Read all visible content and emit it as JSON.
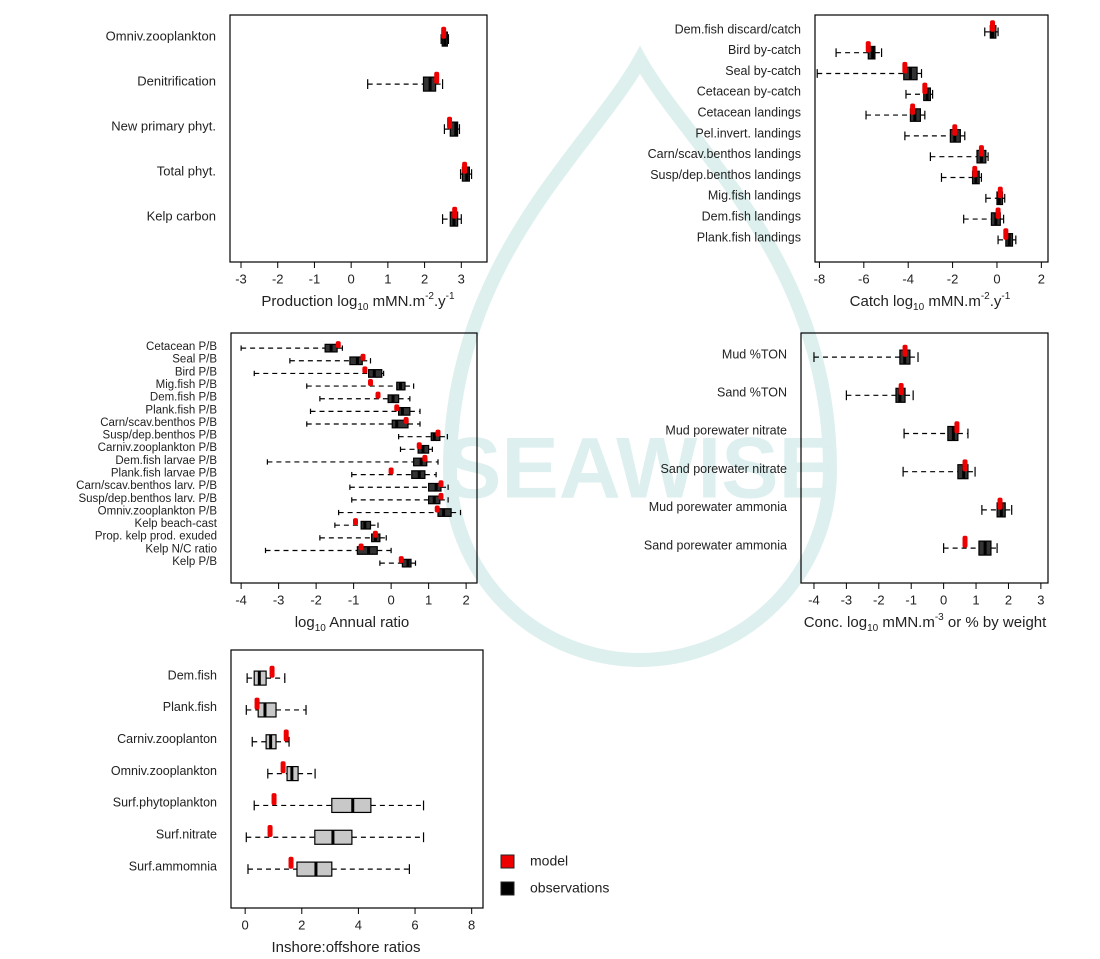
{
  "watermark": "SEAWISE",
  "legend": {
    "entries": [
      {
        "name": "model",
        "color": "#ee0000"
      },
      {
        "name": "observations",
        "color": "#000000"
      }
    ]
  },
  "chart_data": [
    {
      "type": "box",
      "orientation": "horizontal",
      "xlabel": [
        {
          "text": "Production log"
        },
        {
          "text": "10",
          "sub": true
        },
        {
          "text": " mMN.m"
        },
        {
          "text": "-2",
          "super": true
        },
        {
          "text": ".y"
        },
        {
          "text": "-1",
          "super": true
        }
      ],
      "categories": [
        "Omniv.zooplankton",
        "Denitrification",
        "New primary phyt.",
        "Total phyt.",
        "Kelp carbon"
      ],
      "xlim": [
        -3.3,
        3.7
      ],
      "xticks": [
        -3,
        -2,
        -1,
        0,
        1,
        2,
        3
      ],
      "box_fill": "#333333",
      "model": [
        2.52,
        2.33,
        2.68,
        3.09,
        2.82
      ],
      "whisker_low": [
        2.45,
        0.45,
        2.54,
        2.98,
        2.49
      ],
      "q1": [
        2.48,
        1.97,
        2.7,
        3.03,
        2.7
      ],
      "median": [
        2.55,
        2.15,
        2.85,
        3.15,
        2.8
      ],
      "q3": [
        2.62,
        2.3,
        2.9,
        3.22,
        2.9
      ],
      "whisker_high": [
        2.65,
        2.49,
        2.95,
        3.28,
        3.0
      ]
    },
    {
      "type": "box",
      "orientation": "horizontal",
      "xlabel": [
        {
          "text": "Catch log"
        },
        {
          "text": "10",
          "sub": true
        },
        {
          "text": " mMN.m"
        },
        {
          "text": "-2",
          "super": true
        },
        {
          "text": ".y"
        },
        {
          "text": "-1",
          "super": true
        }
      ],
      "categories": [
        "Dem.fish discard/catch",
        "Bird by-catch",
        "Seal by-catch",
        "Cetacean by-catch",
        "Cetacean landings",
        "Pel.invert. landings",
        "Carn/scav.benthos landings",
        "Susp/dep.benthos landings",
        "Mig.fish landings",
        "Dem.fish landings",
        "Plank.fish landings"
      ],
      "xlim": [
        -8.2,
        2.3
      ],
      "xticks": [
        -8,
        -6,
        -4,
        -2,
        0,
        2
      ],
      "box_fill": "#333333",
      "model": [
        -0.2,
        -5.8,
        -4.15,
        -3.25,
        -3.8,
        -1.9,
        -0.7,
        -1.0,
        0.15,
        0.05,
        0.4
      ],
      "whisker_low": [
        -0.55,
        -7.25,
        -8.1,
        -4.1,
        -5.9,
        -4.15,
        -3.0,
        -2.5,
        -0.5,
        -1.5,
        0.05
      ],
      "q1": [
        -0.3,
        -5.8,
        -4.2,
        -3.3,
        -3.9,
        -2.1,
        -0.9,
        -1.1,
        0.0,
        -0.25,
        0.4
      ],
      "median": [
        -0.2,
        -5.6,
        -3.9,
        -3.15,
        -3.7,
        -1.9,
        -0.7,
        -0.95,
        0.1,
        -0.05,
        0.55
      ],
      "q3": [
        -0.05,
        -5.5,
        -3.6,
        -3.0,
        -3.45,
        -1.65,
        -0.5,
        -0.8,
        0.25,
        0.15,
        0.7
      ],
      "whisker_high": [
        0.05,
        -5.2,
        -3.4,
        -2.9,
        -3.25,
        -1.45,
        -0.4,
        -0.7,
        0.35,
        0.3,
        0.85
      ]
    },
    {
      "type": "box",
      "orientation": "horizontal",
      "xlabel": [
        {
          "text": "log"
        },
        {
          "text": "10",
          "sub": true
        },
        {
          "text": " Annual ratio"
        }
      ],
      "categories": [
        "Cetacean P/B",
        "Seal P/B",
        "Bird P/B",
        "Mig.fish P/B",
        "Dem.fish P/B",
        "Plank.fish P/B",
        "Carn/scav.benthos P/B",
        "Susp/dep.benthos P/B",
        "Carniv.zooplankton P/B",
        "Dem.fish larvae P/B",
        "Plank.fish larvae P/B",
        "Carn/scav.benthos larv. P/B",
        "Susp/dep.benthos larv. P/B",
        "Omniv.zooplankton P/B",
        "Kelp beach-cast",
        "Prop. kelp prod. exuded",
        "Kelp N/C ratio",
        "Kelp P/B"
      ],
      "xlim": [
        -4.27,
        2.29
      ],
      "xticks": [
        -4,
        -3,
        -2,
        -1,
        0,
        1,
        2
      ],
      "box_fill": "#333333",
      "model": [
        -1.41,
        -0.75,
        -0.7,
        -0.55,
        -0.35,
        0.15,
        0.4,
        1.25,
        0.75,
        0.9,
        0.0,
        1.33,
        1.33,
        1.23,
        -0.95,
        -0.42,
        -0.8,
        0.27
      ],
      "whisker_low": [
        -4.0,
        -2.7,
        -3.65,
        -2.25,
        -1.9,
        -2.15,
        -2.25,
        0.2,
        0.25,
        -3.3,
        -1.05,
        -1.1,
        -1.05,
        -1.4,
        -1.5,
        -1.9,
        -3.35,
        -0.3
      ],
      "q1": [
        -1.76,
        -1.1,
        -0.6,
        0.15,
        -0.08,
        0.2,
        0.03,
        1.07,
        0.72,
        0.6,
        0.55,
        1.0,
        1.0,
        1.25,
        -0.8,
        -0.52,
        -0.9,
        0.3
      ],
      "median": [
        -1.6,
        -0.9,
        -0.45,
        0.25,
        0.05,
        0.3,
        0.15,
        1.15,
        0.85,
        0.8,
        0.75,
        1.2,
        1.15,
        1.4,
        -0.7,
        -0.42,
        -0.6,
        0.45
      ],
      "q3": [
        -1.44,
        -0.77,
        -0.25,
        0.37,
        0.2,
        0.5,
        0.45,
        1.3,
        1.0,
        0.95,
        0.9,
        1.33,
        1.3,
        1.6,
        -0.55,
        -0.3,
        -0.37,
        0.53
      ],
      "whisker_high": [
        -1.3,
        -0.55,
        -0.2,
        0.6,
        0.5,
        0.77,
        0.77,
        1.5,
        1.1,
        1.25,
        1.2,
        1.52,
        1.52,
        1.85,
        -0.35,
        -0.13,
        0.0,
        0.65
      ]
    },
    {
      "type": "box",
      "orientation": "horizontal",
      "xlabel": [
        {
          "text": "Conc. log"
        },
        {
          "text": "10",
          "sub": true
        },
        {
          "text": " mMN.m"
        },
        {
          "text": "-3",
          "super": true
        },
        {
          "text": " or % by weight"
        }
      ],
      "categories": [
        "Mud %TON",
        "Sand %TON",
        "Mud porewater nitrate",
        "Sand porewater nitrate",
        "Mud porewater ammonia",
        "Sand porewater ammonia"
      ],
      "xlim": [
        -4.4,
        3.22
      ],
      "xticks": [
        -4,
        -3,
        -2,
        -1,
        0,
        1,
        2,
        3
      ],
      "box_fill": "#333333",
      "model": [
        -1.19,
        -1.31,
        0.41,
        0.66,
        1.74,
        0.66
      ],
      "whisker_low": [
        -4.0,
        -3.0,
        -1.22,
        -1.25,
        1.18,
        0.0
      ],
      "q1": [
        -1.35,
        -1.47,
        0.13,
        0.44,
        1.65,
        1.09
      ],
      "median": [
        -1.2,
        -1.35,
        0.3,
        0.62,
        1.78,
        1.28
      ],
      "q3": [
        -1.04,
        -1.19,
        0.44,
        0.75,
        1.9,
        1.46
      ],
      "whisker_high": [
        -0.79,
        -0.94,
        0.75,
        0.97,
        2.1,
        1.65
      ]
    },
    {
      "type": "box",
      "orientation": "horizontal",
      "xlabel": [
        {
          "text": "Inshore:offshore ratios"
        }
      ],
      "categories": [
        "Dem.fish",
        "Plank.fish",
        "Carniv.zooplanton",
        "Omniv.zooplankton",
        "Surf.phytoplankton",
        "Surf.nitrate",
        "Surf.ammomnia"
      ],
      "xlim": [
        -0.5,
        8.4
      ],
      "xticks": [
        0,
        2,
        4,
        6,
        8
      ],
      "box_fill": "#c8c8c8",
      "model": [
        0.95,
        0.42,
        1.45,
        1.34,
        1.02,
        0.88,
        1.62
      ],
      "whisker_low": [
        0.07,
        0.04,
        0.25,
        0.8,
        0.32,
        0.04,
        0.1
      ],
      "q1": [
        0.32,
        0.46,
        0.74,
        1.48,
        3.06,
        2.46,
        1.83
      ],
      "median": [
        0.5,
        0.7,
        0.9,
        1.65,
        3.8,
        3.1,
        2.5
      ],
      "q3": [
        0.74,
        1.09,
        1.09,
        1.87,
        4.44,
        3.77,
        3.06
      ],
      "whisker_high": [
        1.4,
        2.15,
        1.55,
        2.47,
        6.3,
        6.3,
        5.8
      ]
    }
  ]
}
